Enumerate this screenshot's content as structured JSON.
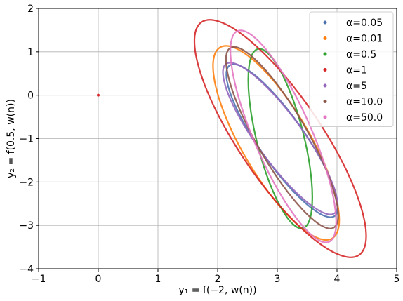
{
  "chart_data": {
    "type": "scatter",
    "xlabel": "y₁ = f(−2, w(n))",
    "ylabel": "y₂ = f(0.5, w(n))",
    "xlim": [
      -1,
      5
    ],
    "ylim": [
      -4,
      2
    ],
    "xticks": [
      {
        "value": -1,
        "label": "−1"
      },
      {
        "value": 0,
        "label": "0"
      },
      {
        "value": 1,
        "label": "1"
      },
      {
        "value": 2,
        "label": "2"
      },
      {
        "value": 3,
        "label": "3"
      },
      {
        "value": 4,
        "label": "4"
      },
      {
        "value": 5,
        "label": "5"
      }
    ],
    "yticks": [
      {
        "value": -4,
        "label": "−4"
      },
      {
        "value": -3,
        "label": "−3"
      },
      {
        "value": -2,
        "label": "−2"
      },
      {
        "value": -1,
        "label": "−1"
      },
      {
        "value": 0,
        "label": "0"
      },
      {
        "value": 1,
        "label": "1"
      },
      {
        "value": 2,
        "label": "2"
      }
    ],
    "grid": true,
    "legend_position": "top-right",
    "start_point": {
      "x": 0,
      "y": 0,
      "color": "#d62728"
    },
    "series": [
      {
        "name": "α=0.05",
        "color": "#4c72b0",
        "ellipse": {
          "center": [
            3.08,
            -1.05
          ],
          "semi_major": 1.95,
          "semi_minor": 0.42,
          "angle_deg": -64
        }
      },
      {
        "name": "α=0.01",
        "color": "#ff7f0e",
        "ellipse": {
          "center": [
            2.98,
            -1.1
          ],
          "semi_major": 2.4,
          "semi_minor": 0.6,
          "angle_deg": -68
        }
      },
      {
        "name": "α=0.5",
        "color": "#2ca02c",
        "ellipse": {
          "center": [
            3.05,
            -1.0
          ],
          "semi_major": 2.1,
          "semi_minor": 0.4,
          "angle_deg": -80
        }
      },
      {
        "name": "α=1",
        "color": "#d62728",
        "ellipse": {
          "center": [
            3.05,
            -1.0
          ],
          "semi_major": 3.0,
          "semi_minor": 0.75,
          "angle_deg": -65
        }
      },
      {
        "name": "α=5",
        "color": "#9467bd",
        "ellipse": {
          "center": [
            3.05,
            -1.0
          ],
          "semi_major": 1.95,
          "semi_minor": 0.42,
          "angle_deg": -63
        }
      },
      {
        "name": "α=10.0",
        "color": "#8c564b",
        "ellipse": {
          "center": [
            3.08,
            -0.98
          ],
          "semi_major": 2.25,
          "semi_minor": 0.45,
          "angle_deg": -68
        }
      },
      {
        "name": "α=50.0",
        "color": "#e377c2",
        "ellipse": {
          "center": [
            3.1,
            -0.95
          ],
          "semi_major": 2.55,
          "semi_minor": 0.5,
          "angle_deg": -73
        }
      }
    ]
  }
}
